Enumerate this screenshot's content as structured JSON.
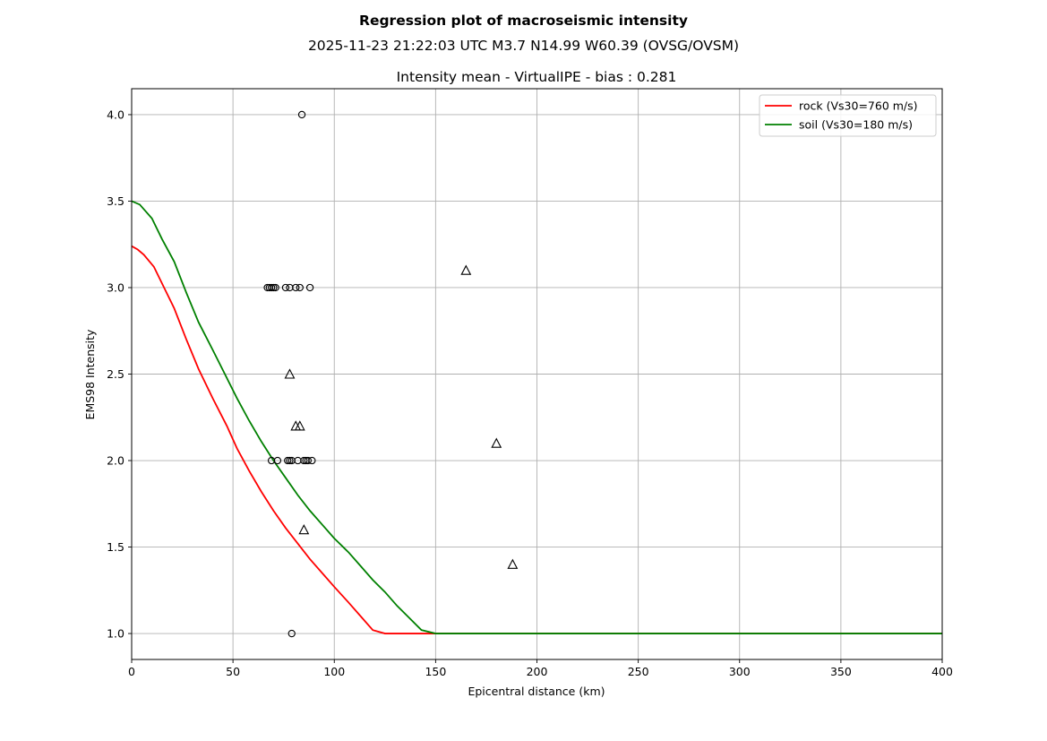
{
  "figure": {
    "suptitle": "Regression plot of macroseismic intensity",
    "subtitle": "2025-11-23 21:22:03 UTC M3.7 N14.99 W60.39 (OVSG/OVSM)"
  },
  "chart_data": {
    "type": "line",
    "title": "Intensity mean - VirtualIPE - bias : 0.281",
    "xlabel": "Epicentral distance (km)",
    "ylabel": "EMS98 Intensity",
    "xlim": [
      0,
      400
    ],
    "ylim": [
      0.85,
      4.15
    ],
    "xticks": [
      0,
      50,
      100,
      150,
      200,
      250,
      300,
      350,
      400
    ],
    "yticks": [
      1.0,
      1.5,
      2.0,
      2.5,
      3.0,
      3.5,
      4.0
    ],
    "ytick_labels": [
      "1.0",
      "1.5",
      "2.0",
      "2.5",
      "3.0",
      "3.5",
      "4.0"
    ],
    "grid": true,
    "legend_position": "top-right",
    "series": [
      {
        "name": "rock (Vs30=760 m/s)",
        "color": "#ff0000",
        "x": [
          0,
          3,
          6,
          11,
          16,
          21,
          27,
          33,
          40,
          47,
          52,
          58,
          64,
          70,
          76,
          82,
          88,
          94,
          100,
          107,
          113,
          119,
          125,
          150,
          400
        ],
        "y": [
          3.24,
          3.22,
          3.19,
          3.12,
          3.0,
          2.88,
          2.7,
          2.53,
          2.36,
          2.2,
          2.07,
          1.94,
          1.82,
          1.71,
          1.61,
          1.52,
          1.43,
          1.35,
          1.27,
          1.18,
          1.1,
          1.02,
          1.0,
          1.0,
          1.0
        ]
      },
      {
        "name": "soil (Vs30=180 m/s)",
        "color": "#008000",
        "x": [
          0,
          4,
          10,
          15,
          21,
          27,
          33,
          40,
          46,
          52,
          58,
          64,
          70,
          76,
          82,
          88,
          94,
          100,
          107,
          113,
          119,
          125,
          131,
          137,
          143,
          150,
          400
        ],
        "y": [
          3.5,
          3.48,
          3.4,
          3.28,
          3.15,
          2.97,
          2.8,
          2.64,
          2.5,
          2.36,
          2.23,
          2.11,
          2.0,
          1.9,
          1.8,
          1.71,
          1.63,
          1.55,
          1.47,
          1.39,
          1.31,
          1.24,
          1.16,
          1.09,
          1.02,
          1.0,
          1.0
        ]
      }
    ],
    "scatter_circles": {
      "color": "#000000",
      "x": [
        84,
        67,
        68,
        69,
        70,
        71,
        76,
        78,
        81,
        83,
        88,
        69,
        72,
        77,
        78,
        79,
        82,
        85,
        86,
        87,
        89,
        79
      ],
      "y": [
        4.0,
        3.0,
        3.0,
        3.0,
        3.0,
        3.0,
        3.0,
        3.0,
        3.0,
        3.0,
        3.0,
        2.0,
        2.0,
        2.0,
        2.0,
        2.0,
        2.0,
        2.0,
        2.0,
        2.0,
        2.0,
        1.0
      ]
    },
    "scatter_triangles": {
      "color": "#000000",
      "x": [
        165,
        78,
        81,
        83,
        180,
        85,
        188
      ],
      "y": [
        3.1,
        2.5,
        2.2,
        2.2,
        2.1,
        1.6,
        1.4
      ]
    }
  }
}
